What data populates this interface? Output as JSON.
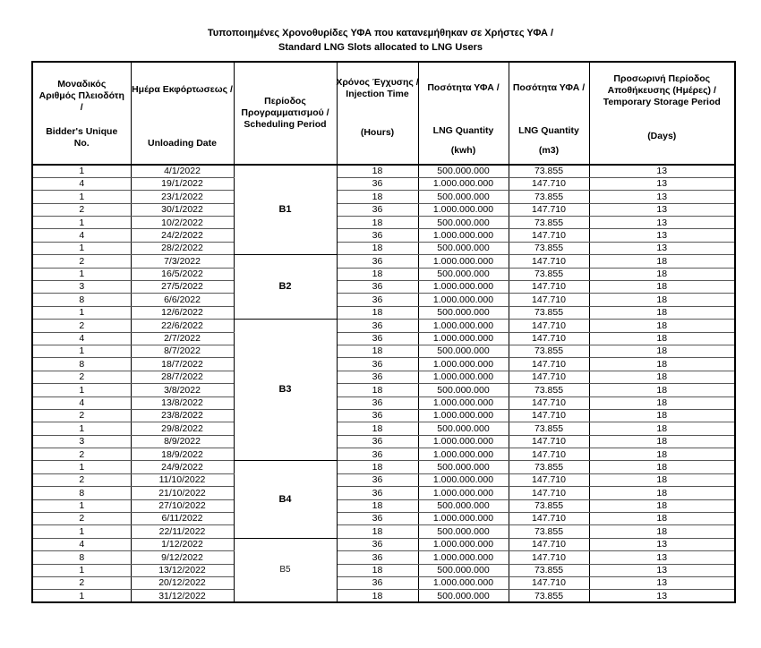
{
  "title": {
    "line1": "Τυποποιημένες Χρονοθυρίδες ΥΦΑ που κατανεμήθηκαν σε Χρήστες ΥΦΑ /",
    "line2": "Standard LNG Slots allocated to LNG Users"
  },
  "table": {
    "headers": {
      "bidder": {
        "gr": "Μοναδικός Αριθμός Πλειοδότη /",
        "en": "Bidder's Unique No."
      },
      "date": {
        "gr": "Ημέρα Εκφόρτωσεως /",
        "en": "Unloading Date"
      },
      "period": {
        "label": "Περίοδος Προγραμματισμού / Scheduling Period"
      },
      "hours": {
        "gr": "Χρόνος Έγχυσης /",
        "en": "Injection Time",
        "unit": "(Hours)"
      },
      "kwh": {
        "gr": "Ποσότητα ΥΦΑ /",
        "en": "LNG Quantity",
        "unit": "(kwh)"
      },
      "m3": {
        "gr": "Ποσότητα ΥΦΑ /",
        "en": "LNG Quantity",
        "unit": "(m3)"
      },
      "days": {
        "gr": "Προσωρινή Περίοδος Αποθήκευσης (Ημέρες) /",
        "en": "Temporary Storage Period",
        "unit": "(Days)"
      }
    },
    "groups": [
      {
        "period": "B1",
        "bold": true,
        "rows": [
          [
            "1",
            "4/1/2022",
            "18",
            "500.000.000",
            "73.855",
            "13"
          ],
          [
            "4",
            "19/1/2022",
            "36",
            "1.000.000.000",
            "147.710",
            "13"
          ],
          [
            "1",
            "23/1/2022",
            "18",
            "500.000.000",
            "73.855",
            "13"
          ],
          [
            "2",
            "30/1/2022",
            "36",
            "1.000.000.000",
            "147.710",
            "13"
          ],
          [
            "1",
            "10/2/2022",
            "18",
            "500.000.000",
            "73.855",
            "13"
          ],
          [
            "4",
            "24/2/2022",
            "36",
            "1.000.000.000",
            "147.710",
            "13"
          ],
          [
            "1",
            "28/2/2022",
            "18",
            "500.000.000",
            "73.855",
            "13"
          ]
        ]
      },
      {
        "period": "B2",
        "bold": true,
        "rows": [
          [
            "2",
            "7/3/2022",
            "36",
            "1.000.000.000",
            "147.710",
            "18"
          ],
          [
            "1",
            "16/5/2022",
            "18",
            "500.000.000",
            "73.855",
            "18"
          ],
          [
            "3",
            "27/5/2022",
            "36",
            "1.000.000.000",
            "147.710",
            "18"
          ],
          [
            "8",
            "6/6/2022",
            "36",
            "1.000.000.000",
            "147.710",
            "18"
          ],
          [
            "1",
            "12/6/2022",
            "18",
            "500.000.000",
            "73.855",
            "18"
          ]
        ]
      },
      {
        "period": "B3",
        "bold": true,
        "rows": [
          [
            "2",
            "22/6/2022",
            "36",
            "1.000.000.000",
            "147.710",
            "18"
          ],
          [
            "4",
            "2/7/2022",
            "36",
            "1.000.000.000",
            "147.710",
            "18"
          ],
          [
            "1",
            "8/7/2022",
            "18",
            "500.000.000",
            "73.855",
            "18"
          ],
          [
            "8",
            "18/7/2022",
            "36",
            "1.000.000.000",
            "147.710",
            "18"
          ],
          [
            "2",
            "28/7/2022",
            "36",
            "1.000.000.000",
            "147.710",
            "18"
          ],
          [
            "1",
            "3/8/2022",
            "18",
            "500.000.000",
            "73.855",
            "18"
          ],
          [
            "4",
            "13/8/2022",
            "36",
            "1.000.000.000",
            "147.710",
            "18"
          ],
          [
            "2",
            "23/8/2022",
            "36",
            "1.000.000.000",
            "147.710",
            "18"
          ],
          [
            "1",
            "29/8/2022",
            "18",
            "500.000.000",
            "73.855",
            "18"
          ],
          [
            "3",
            "8/9/2022",
            "36",
            "1.000.000.000",
            "147.710",
            "18"
          ],
          [
            "2",
            "18/9/2022",
            "36",
            "1.000.000.000",
            "147.710",
            "18"
          ]
        ]
      },
      {
        "period": "B4",
        "bold": true,
        "rows": [
          [
            "1",
            "24/9/2022",
            "18",
            "500.000.000",
            "73.855",
            "18"
          ],
          [
            "2",
            "11/10/2022",
            "36",
            "1.000.000.000",
            "147.710",
            "18"
          ],
          [
            "8",
            "21/10/2022",
            "36",
            "1.000.000.000",
            "147.710",
            "18"
          ],
          [
            "1",
            "27/10/2022",
            "18",
            "500.000.000",
            "73.855",
            "18"
          ],
          [
            "2",
            "6/11/2022",
            "36",
            "1.000.000.000",
            "147.710",
            "18"
          ],
          [
            "1",
            "22/11/2022",
            "18",
            "500.000.000",
            "73.855",
            "18"
          ]
        ]
      },
      {
        "period": "B5",
        "bold": false,
        "rows": [
          [
            "4",
            "1/12/2022",
            "36",
            "1.000.000.000",
            "147.710",
            "13"
          ],
          [
            "8",
            "9/12/2022",
            "36",
            "1.000.000.000",
            "147.710",
            "13"
          ],
          [
            "1",
            "13/12/2022",
            "18",
            "500.000.000",
            "73.855",
            "13"
          ],
          [
            "2",
            "20/12/2022",
            "36",
            "1.000.000.000",
            "147.710",
            "13"
          ],
          [
            "1",
            "31/12/2022",
            "18",
            "500.000.000",
            "73.855",
            "13"
          ]
        ]
      }
    ]
  }
}
